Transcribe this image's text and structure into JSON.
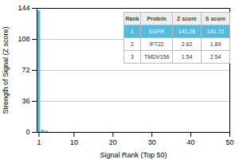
{
  "chart_data": {
    "type": "bar",
    "x": [
      1,
      2,
      3
    ],
    "values": [
      141.26,
      2.62,
      1.54
    ],
    "color": "#55bbdd",
    "xlabel": "Signal Rank (Top 50)",
    "ylabel": "Strength of Signal (Z score)",
    "xlim": [
      0.5,
      50
    ],
    "xticks": [
      1,
      10,
      20,
      30,
      40,
      50
    ],
    "ylim": [
      0,
      144
    ],
    "yticks": [
      0,
      36,
      72,
      108,
      144
    ],
    "grid": true,
    "table": [
      [
        "Rank",
        "Protein",
        "Z score",
        "S score"
      ],
      [
        "1",
        "EGFR",
        "141.26",
        "141.72"
      ],
      [
        "2",
        "IFT22",
        "2.62",
        "1.89"
      ],
      [
        "3",
        "TMDV156",
        "1.54",
        "2.54"
      ]
    ]
  }
}
